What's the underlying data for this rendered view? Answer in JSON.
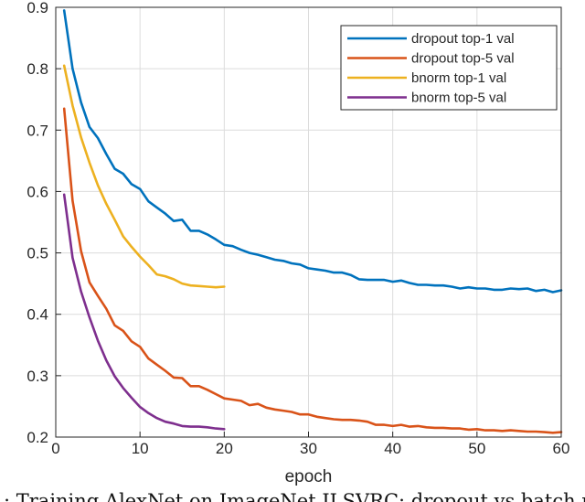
{
  "chart_data": {
    "type": "line",
    "xlabel": "epoch",
    "ylabel": "",
    "xlim": [
      0,
      60
    ],
    "ylim": [
      0.2,
      0.9
    ],
    "x_ticks": [
      "0",
      "10",
      "20",
      "30",
      "40",
      "50",
      "60"
    ],
    "y_ticks": [
      "0.2",
      "0.3",
      "0.4",
      "0.5",
      "0.6",
      "0.7",
      "0.8",
      "0.9"
    ],
    "grid": true,
    "legend_position": "top-right",
    "series": [
      {
        "name": "dropout top-1 val",
        "color": "#0072BD",
        "x": [
          1,
          2,
          3,
          4,
          5,
          6,
          7,
          8,
          9,
          10,
          11,
          12,
          13,
          14,
          15,
          16,
          17,
          18,
          19,
          20,
          21,
          22,
          23,
          24,
          25,
          26,
          27,
          28,
          29,
          30,
          31,
          32,
          33,
          34,
          35,
          36,
          37,
          38,
          39,
          40,
          41,
          42,
          43,
          44,
          45,
          46,
          47,
          48,
          49,
          50,
          51,
          52,
          53,
          54,
          55,
          56,
          57,
          58,
          59,
          60
        ],
        "y": [
          0.895,
          0.8,
          0.745,
          0.705,
          0.687,
          0.661,
          0.637,
          0.629,
          0.612,
          0.604,
          0.584,
          0.574,
          0.564,
          0.552,
          0.554,
          0.536,
          0.536,
          0.53,
          0.522,
          0.513,
          0.511,
          0.505,
          0.5,
          0.497,
          0.493,
          0.489,
          0.487,
          0.483,
          0.481,
          0.475,
          0.473,
          0.471,
          0.468,
          0.468,
          0.464,
          0.457,
          0.456,
          0.456,
          0.456,
          0.453,
          0.455,
          0.451,
          0.448,
          0.448,
          0.447,
          0.447,
          0.445,
          0.442,
          0.444,
          0.442,
          0.442,
          0.44,
          0.44,
          0.442,
          0.441,
          0.442,
          0.438,
          0.44,
          0.436,
          0.439
        ]
      },
      {
        "name": "dropout top-5 val",
        "color": "#D95319",
        "x": [
          1,
          2,
          3,
          4,
          5,
          6,
          7,
          8,
          9,
          10,
          11,
          12,
          13,
          14,
          15,
          16,
          17,
          18,
          19,
          20,
          21,
          22,
          23,
          24,
          25,
          26,
          27,
          28,
          29,
          30,
          31,
          32,
          33,
          34,
          35,
          36,
          37,
          38,
          39,
          40,
          41,
          42,
          43,
          44,
          45,
          46,
          47,
          48,
          49,
          50,
          51,
          52,
          53,
          54,
          55,
          56,
          57,
          58,
          59,
          60
        ],
        "y": [
          0.735,
          0.585,
          0.503,
          0.452,
          0.43,
          0.409,
          0.382,
          0.373,
          0.356,
          0.347,
          0.328,
          0.318,
          0.308,
          0.297,
          0.296,
          0.283,
          0.283,
          0.277,
          0.27,
          0.263,
          0.261,
          0.259,
          0.252,
          0.254,
          0.248,
          0.245,
          0.243,
          0.241,
          0.237,
          0.237,
          0.233,
          0.231,
          0.229,
          0.228,
          0.228,
          0.227,
          0.225,
          0.22,
          0.22,
          0.218,
          0.22,
          0.217,
          0.218,
          0.216,
          0.215,
          0.215,
          0.214,
          0.214,
          0.212,
          0.213,
          0.211,
          0.211,
          0.21,
          0.211,
          0.21,
          0.209,
          0.209,
          0.208,
          0.207,
          0.208
        ]
      },
      {
        "name": "bnorm top-1 val",
        "color": "#EDB120",
        "x": [
          1,
          2,
          3,
          4,
          5,
          6,
          7,
          8,
          9,
          10,
          11,
          12,
          13,
          14,
          15,
          16,
          17,
          18,
          19,
          20
        ],
        "y": [
          0.805,
          0.74,
          0.688,
          0.647,
          0.61,
          0.58,
          0.554,
          0.527,
          0.51,
          0.494,
          0.48,
          0.465,
          0.462,
          0.457,
          0.45,
          0.447,
          0.446,
          0.445,
          0.444,
          0.445
        ]
      },
      {
        "name": "bnorm top-5 val",
        "color": "#7E2F8E",
        "x": [
          1,
          2,
          3,
          4,
          5,
          6,
          7,
          8,
          9,
          10,
          11,
          12,
          13,
          14,
          15,
          16,
          17,
          18,
          19,
          20
        ],
        "y": [
          0.595,
          0.492,
          0.437,
          0.395,
          0.357,
          0.325,
          0.299,
          0.28,
          0.264,
          0.249,
          0.239,
          0.231,
          0.225,
          0.222,
          0.218,
          0.217,
          0.217,
          0.216,
          0.214,
          0.213
        ]
      }
    ]
  },
  "caption": {
    "text": ": Training AlexNet on ImageNet ILSVRC: dropout vs batch nor"
  }
}
